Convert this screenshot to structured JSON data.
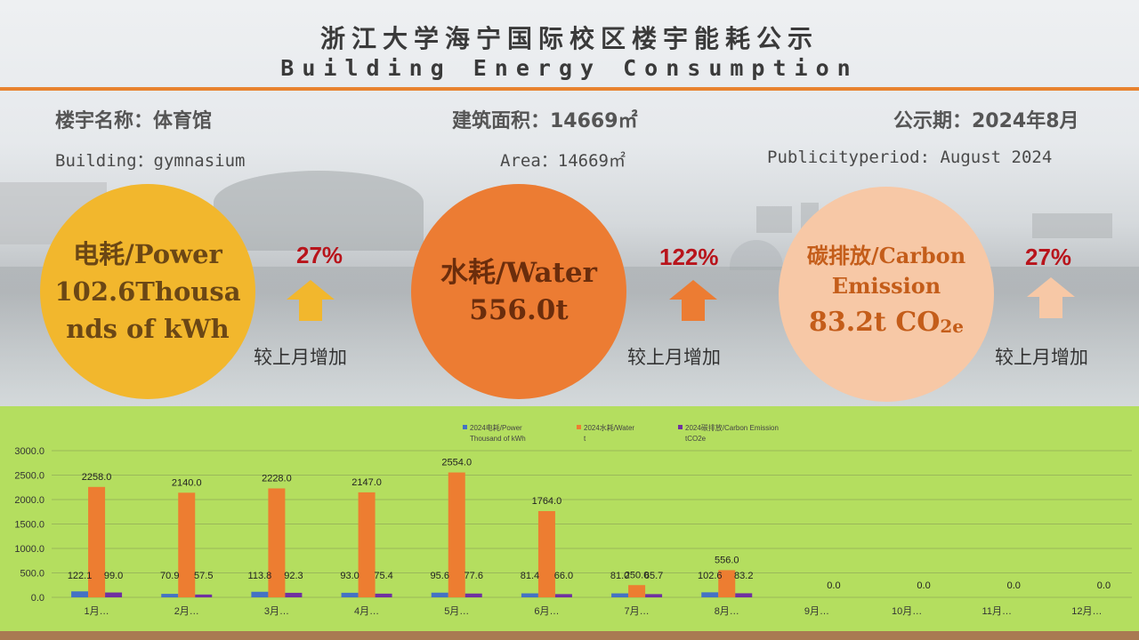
{
  "header": {
    "title_cn": "浙江大学海宁国际校区楼宇能耗公示",
    "title_en": "Building Energy Consumption"
  },
  "info": {
    "building_cn": "楼宇名称：体育馆",
    "area_cn": "建筑面积：14669㎡",
    "period_cn": "公示期：2024年8月",
    "building_en": "Building：gymnasium",
    "area_en": "Area：14669㎡",
    "period_en": "Publicityperiod:  August 2024"
  },
  "cards": {
    "power": {
      "line1": "电耗/Power",
      "line2": "102.6Thousa",
      "line3": "nds of kWh",
      "change": "27%",
      "compare": "较上月增加",
      "color": "#f2b72d",
      "arrow_color": "#f2b72d"
    },
    "water": {
      "line1": "水耗/Water",
      "line2": "556.0t",
      "change": "122%",
      "compare": "较上月增加",
      "color": "#ec7c33",
      "arrow_color": "#ec7c33"
    },
    "carbon": {
      "line1": "碳排放/Carbon",
      "line2": "Emission",
      "line3_main": "83.2t CO",
      "line3_sub": "2e",
      "change": "27%",
      "compare": "较上月增加",
      "color": "#f7c8a6",
      "arrow_color": "#f7c8a6"
    }
  },
  "chart_data": {
    "type": "bar",
    "categories": [
      "1月…",
      "2月…",
      "3月…",
      "4月…",
      "5月…",
      "6月…",
      "7月…",
      "8月…",
      "9月…",
      "10月…",
      "11月…",
      "12月…"
    ],
    "series": [
      {
        "name": "2024电耗/Power Thousand of kWh",
        "color": "#4472c4",
        "values": [
          122.1,
          70.9,
          113.8,
          93.0,
          95.6,
          81.4,
          81.0,
          102.6,
          0.0,
          0.0,
          0.0,
          0.0
        ]
      },
      {
        "name": "2024水耗/Water t",
        "color": "#ed7d31",
        "values": [
          2258.0,
          2140.0,
          2228.0,
          2147.0,
          2554.0,
          1764.0,
          250.0,
          556.0,
          0.0,
          0.0,
          0.0,
          0.0
        ]
      },
      {
        "name": "2024碳排放/Carbon Emission tCO2e",
        "color": "#7030a0",
        "values": [
          99.0,
          57.5,
          92.3,
          75.4,
          77.6,
          66.0,
          65.7,
          83.2,
          0.0,
          0.0,
          0.0,
          0.0
        ]
      }
    ],
    "legend": [
      {
        "line1": "2024电耗/Power",
        "line2": "Thousand of kWh",
        "color": "#4472c4"
      },
      {
        "line1": "2024水耗/Water",
        "line2": "t",
        "color": "#ed7d31"
      },
      {
        "line1": "2024碳排放/Carbon Emission",
        "line2": "tCO2e",
        "color": "#7030a0"
      }
    ],
    "y_ticks": [
      "0.0",
      "500.0",
      "1000.0",
      "1500.0",
      "2000.0",
      "2500.0",
      "3000.0"
    ],
    "ylim": [
      0,
      3000
    ],
    "grid": true,
    "legend_position": "top"
  }
}
